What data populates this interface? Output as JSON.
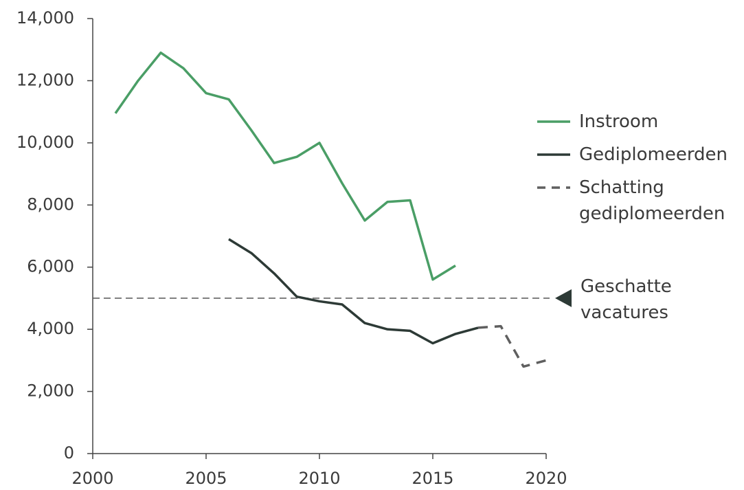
{
  "chart_data": {
    "type": "line",
    "x_is_numeric": true,
    "xlim": [
      2000,
      2020
    ],
    "xticks": [
      2000,
      2005,
      2010,
      2015,
      2020
    ],
    "ylim": [
      0,
      14000
    ],
    "yticks": [
      0,
      {
        "value": 2000,
        "label": "2,000"
      },
      {
        "value": 4000,
        "label": "4,000"
      },
      {
        "value": 6000,
        "label": "6,000"
      },
      {
        "value": 8000,
        "label": "8,000"
      },
      {
        "value": 10000,
        "label": "10,000"
      },
      {
        "value": 12000,
        "label": "12,000"
      },
      {
        "value": 14000,
        "label": "14,000"
      }
    ],
    "grid": false,
    "legend": "right",
    "series": [
      {
        "name": "Instroom",
        "color": "#4a9e66",
        "dash": false,
        "x": [
          2001,
          2002,
          2003,
          2004,
          2005,
          2006,
          2007,
          2008,
          2009,
          2010,
          2011,
          2012,
          2013,
          2014,
          2015,
          2016
        ],
        "values": [
          10950,
          12000,
          12900,
          12400,
          11600,
          11400,
          10400,
          9350,
          9550,
          10000,
          8700,
          7500,
          8100,
          8150,
          5600,
          6050
        ]
      },
      {
        "name": "Gediplomeerden",
        "color": "#2d3a36",
        "dash": false,
        "x": [
          2006,
          2007,
          2008,
          2009,
          2010,
          2011,
          2012,
          2013,
          2014,
          2015,
          2016,
          2017
        ],
        "values": [
          6900,
          6450,
          5800,
          5050,
          4900,
          4800,
          4200,
          4000,
          3950,
          3550,
          3850,
          4050
        ]
      },
      {
        "name": "Schatting gediplomeerden",
        "color": "#5f5f5f",
        "dash": true,
        "x": [
          2017,
          2018,
          2019,
          2020
        ],
        "values": [
          4050,
          4100,
          2800,
          3000
        ]
      }
    ],
    "reference_line": {
      "value": 5000,
      "label": "Geschatte vacatures",
      "color": "#555555"
    }
  }
}
